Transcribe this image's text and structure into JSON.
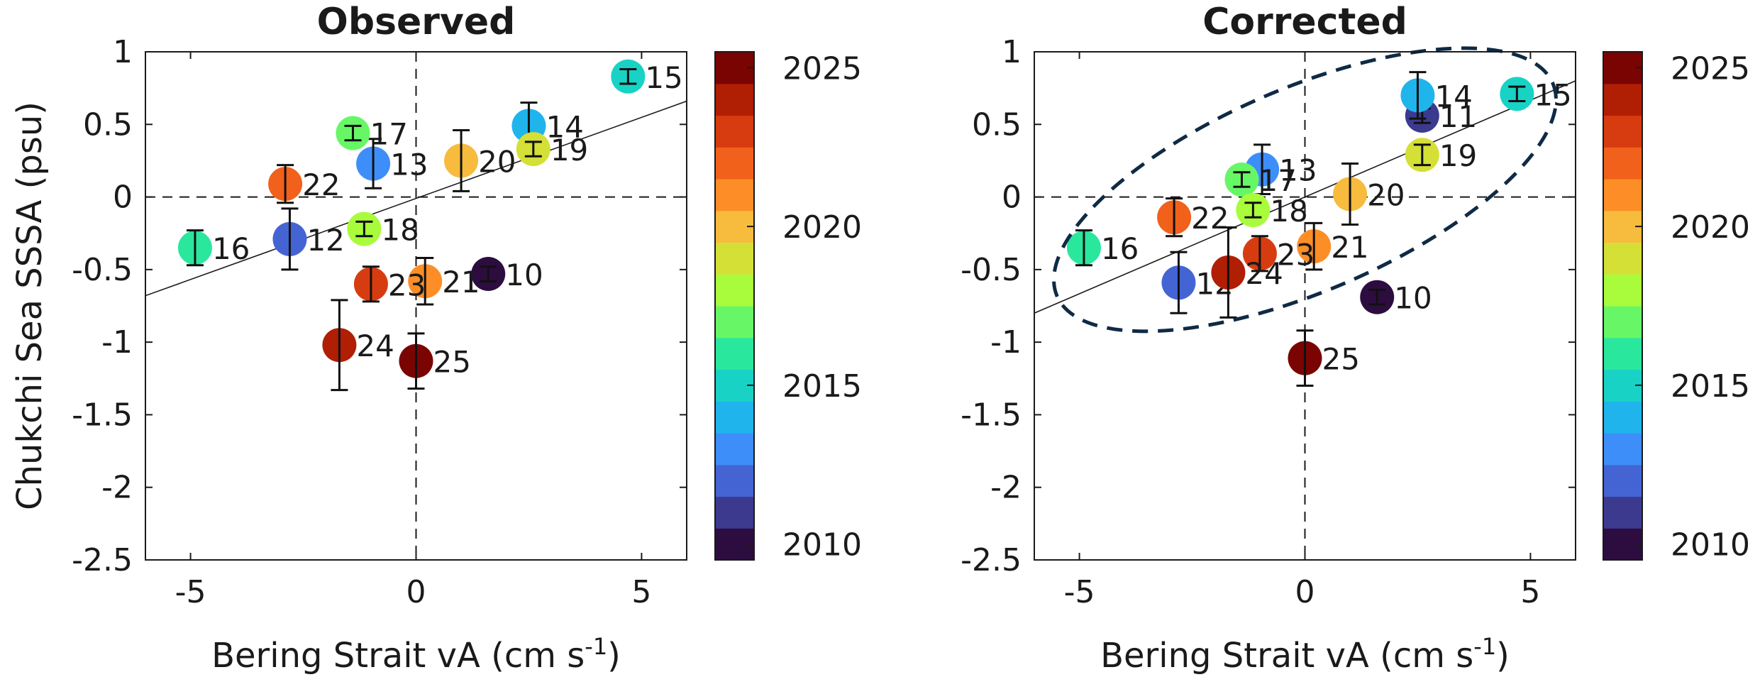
{
  "chart_data": [
    {
      "type": "scatter",
      "title": "Observed",
      "xlabel": "Bering Strait vA (cm s",
      "xlabel_sup": "-1",
      "xlabel_end": ")",
      "ylabel": "Chukchi Sea SSSA (psu)",
      "xlim": [
        -6,
        6
      ],
      "ylim": [
        -2.5,
        1
      ],
      "xticks": [
        "-5",
        "0",
        "5"
      ],
      "yticks": [
        "1",
        "0.5",
        "0",
        "-0.5",
        "-1",
        "-1.5",
        "-2",
        "-2.5"
      ],
      "grid": false,
      "reference_lines": {
        "x": 0,
        "y": 0,
        "style": "dashed"
      },
      "fit_line": {
        "x": [
          -6,
          6
        ],
        "y": [
          -0.68,
          0.66
        ]
      },
      "points": [
        {
          "label": "10",
          "year": 2010,
          "x": 1.6,
          "y": -0.53,
          "err": 0.05
        },
        {
          "label": "12",
          "year": 2012,
          "x": -2.8,
          "y": -0.29,
          "err": 0.21
        },
        {
          "label": "13",
          "year": 2013,
          "x": -0.95,
          "y": 0.23,
          "err": 0.17
        },
        {
          "label": "14",
          "year": 2014,
          "x": 2.5,
          "y": 0.49,
          "err": 0.16
        },
        {
          "label": "15",
          "year": 2015,
          "x": 4.7,
          "y": 0.83,
          "err": 0.05
        },
        {
          "label": "16",
          "year": 2016,
          "x": -4.9,
          "y": -0.35,
          "err": 0.12
        },
        {
          "label": "17",
          "year": 2017,
          "x": -1.4,
          "y": 0.44,
          "err": 0.05
        },
        {
          "label": "18",
          "year": 2018,
          "x": -1.15,
          "y": -0.22,
          "err": 0.05
        },
        {
          "label": "19",
          "year": 2019,
          "x": 2.6,
          "y": 0.33,
          "err": 0.05
        },
        {
          "label": "20",
          "year": 2020,
          "x": 1.0,
          "y": 0.25,
          "err": 0.21
        },
        {
          "label": "21",
          "year": 2021,
          "x": 0.2,
          "y": -0.58,
          "err": 0.16
        },
        {
          "label": "22",
          "year": 2022,
          "x": -2.9,
          "y": 0.09,
          "err": 0.13
        },
        {
          "label": "23",
          "year": 2023,
          "x": -1.0,
          "y": -0.6,
          "err": 0.12
        },
        {
          "label": "24",
          "year": 2024,
          "x": -1.7,
          "y": -1.02,
          "err": 0.31
        },
        {
          "label": "25",
          "year": 2025,
          "x": 0.0,
          "y": -1.13,
          "err": 0.19
        }
      ]
    },
    {
      "type": "scatter",
      "title": "Corrected",
      "xlabel": "Bering Strait vA (cm s",
      "xlabel_sup": "-1",
      "xlabel_end": ")",
      "ylabel": "",
      "xlim": [
        -6,
        6
      ],
      "ylim": [
        -2.5,
        1
      ],
      "xticks": [
        "-5",
        "0",
        "5"
      ],
      "yticks": [
        "1",
        "0.5",
        "0",
        "-0.5",
        "-1",
        "-1.5",
        "-2",
        "-2.5"
      ],
      "grid": false,
      "reference_lines": {
        "x": 0,
        "y": 0,
        "style": "dashed"
      },
      "fit_line": {
        "x": [
          -6,
          6
        ],
        "y": [
          -0.8,
          0.8
        ]
      },
      "ellipse": {
        "cx": 0,
        "cy": 0.05,
        "semi_major": 6.5,
        "semi_minor": 0.7,
        "orientation": "along fit line",
        "style": "dashed"
      },
      "points": [
        {
          "label": "10",
          "year": 2010,
          "x": 1.6,
          "y": -0.69,
          "err": 0.05
        },
        {
          "label": "11",
          "year": 2011,
          "x": 2.6,
          "y": 0.56,
          "err": 0.05
        },
        {
          "label": "12",
          "year": 2012,
          "x": -2.8,
          "y": -0.59,
          "err": 0.21
        },
        {
          "label": "13",
          "year": 2013,
          "x": -0.95,
          "y": 0.19,
          "err": 0.17
        },
        {
          "label": "14",
          "year": 2014,
          "x": 2.5,
          "y": 0.7,
          "err": 0.16
        },
        {
          "label": "15",
          "year": 2015,
          "x": 4.7,
          "y": 0.71,
          "err": 0.05
        },
        {
          "label": "16",
          "year": 2016,
          "x": -4.9,
          "y": -0.35,
          "err": 0.12
        },
        {
          "label": "17",
          "year": 2017,
          "x": -1.4,
          "y": 0.12,
          "err": 0.05
        },
        {
          "label": "18",
          "year": 2018,
          "x": -1.15,
          "y": -0.09,
          "err": 0.05
        },
        {
          "label": "19",
          "year": 2019,
          "x": 2.6,
          "y": 0.29,
          "err": 0.07
        },
        {
          "label": "20",
          "year": 2020,
          "x": 1.0,
          "y": 0.02,
          "err": 0.21
        },
        {
          "label": "21",
          "year": 2021,
          "x": 0.2,
          "y": -0.34,
          "err": 0.16
        },
        {
          "label": "22",
          "year": 2022,
          "x": -2.9,
          "y": -0.14,
          "err": 0.13
        },
        {
          "label": "23",
          "year": 2023,
          "x": -1.0,
          "y": -0.39,
          "err": 0.12
        },
        {
          "label": "24",
          "year": 2024,
          "x": -1.7,
          "y": -0.52,
          "err": 0.31
        },
        {
          "label": "25",
          "year": 2025,
          "x": 0.0,
          "y": -1.11,
          "err": 0.19
        }
      ]
    }
  ],
  "colorbar": {
    "range": [
      2009.5,
      2025.5
    ],
    "ticks": [
      "2025",
      "2020",
      "2015",
      "2010"
    ],
    "colors": [
      "#2d0d3f",
      "#3c3a8f",
      "#4564d4",
      "#3e8ef9",
      "#20b4ec",
      "#18d3c5",
      "#2ae79e",
      "#67f766",
      "#a8fc3b",
      "#d4e036",
      "#f7bb3d",
      "#fd8e27",
      "#f1611b",
      "#d73c10",
      "#b01e04",
      "#7a0402"
    ]
  }
}
